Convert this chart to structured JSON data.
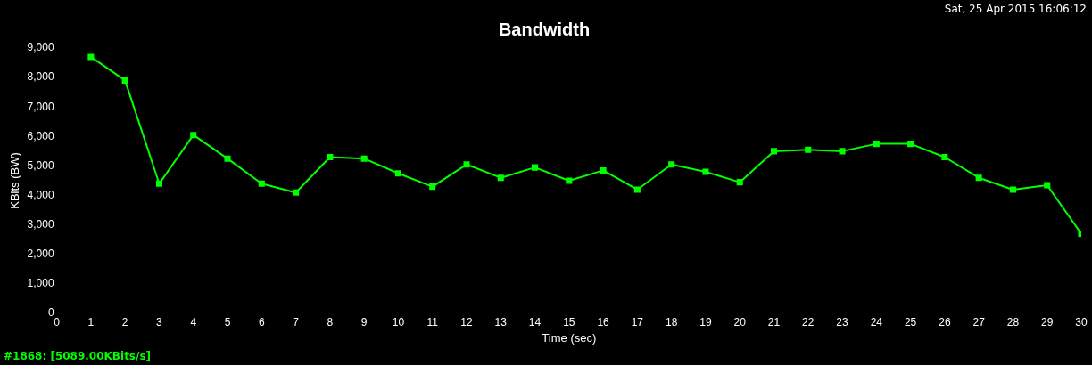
{
  "chart_data": {
    "type": "line",
    "title": "Bandwidth",
    "xlabel": "Time (sec)",
    "ylabel": "KBits (BW)",
    "annotations": [
      "Sat, 25 Apr 2015 16:06:12",
      "#1868: [5089.00KBits/s]"
    ],
    "x": [
      1,
      2,
      3,
      4,
      5,
      6,
      7,
      8,
      9,
      10,
      11,
      12,
      13,
      14,
      15,
      16,
      17,
      18,
      19,
      20,
      21,
      22,
      23,
      24,
      25,
      26,
      27,
      28,
      29,
      30
    ],
    "series": [
      {
        "color": "#00ff00",
        "values": [
          8700,
          7900,
          4400,
          6050,
          5250,
          4400,
          4100,
          5300,
          5250,
          4750,
          4300,
          5050,
          4600,
          4950,
          4500,
          4850,
          4200,
          5050,
          4800,
          4450,
          5500,
          5550,
          5500,
          5750,
          5750,
          5300,
          4600,
          4200,
          4350,
          2700
        ]
      }
    ],
    "xlim": [
      0,
      30
    ],
    "xticks": [
      0,
      1,
      2,
      3,
      4,
      5,
      6,
      7,
      8,
      9,
      10,
      11,
      12,
      13,
      14,
      15,
      16,
      17,
      18,
      19,
      20,
      21,
      22,
      23,
      24,
      25,
      26,
      27,
      28,
      29,
      30
    ],
    "ylim": [
      0,
      9000
    ],
    "yticks": [
      0,
      {
        "value": 1000,
        "label": "1,000"
      },
      {
        "value": 2000,
        "label": "2,000"
      },
      {
        "value": 3000,
        "label": "3,000"
      },
      {
        "value": 4000,
        "label": "4,000"
      },
      {
        "value": 5000,
        "label": "5,000"
      },
      {
        "value": 6000,
        "label": "6,000"
      },
      {
        "value": 7000,
        "label": "7,000"
      },
      {
        "value": 8000,
        "label": "8,000"
      },
      {
        "value": 9000,
        "label": "9,000"
      }
    ],
    "grid": false,
    "legend": false,
    "marker": "square",
    "line_style": "solid"
  }
}
